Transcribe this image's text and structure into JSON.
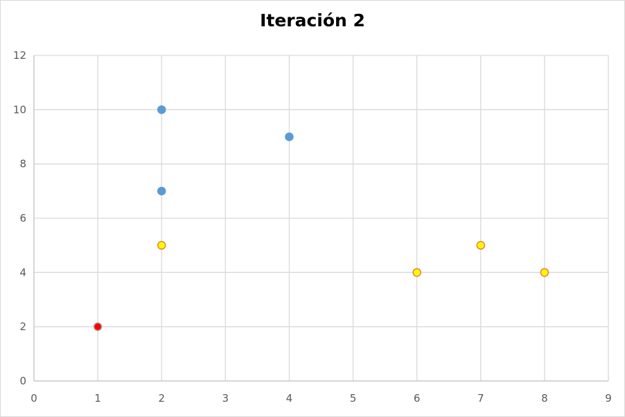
{
  "chart_data": {
    "type": "scatter",
    "title": "Iteración 2",
    "xlabel": "",
    "ylabel": "",
    "xlim": [
      0,
      9
    ],
    "ylim": [
      0,
      12
    ],
    "x_ticks": [
      0,
      1,
      2,
      3,
      4,
      5,
      6,
      7,
      8,
      9
    ],
    "y_ticks": [
      0,
      2,
      4,
      6,
      8,
      10,
      12
    ],
    "grid": true,
    "legend": "none",
    "series": [
      {
        "points": [
          [
            2,
            10
          ],
          [
            2,
            7
          ],
          [
            4,
            9
          ]
        ],
        "fill": "#5b9bd5",
        "stroke": "#5b9bd5"
      },
      {
        "points": [
          [
            2,
            5
          ],
          [
            6,
            4
          ],
          [
            7,
            5
          ],
          [
            8,
            4
          ]
        ],
        "fill": "#ffff00",
        "stroke": "#ed7d31"
      },
      {
        "points": [
          [
            1,
            2
          ]
        ],
        "fill": "#ff0000",
        "stroke": "#a5a5a5"
      }
    ]
  }
}
